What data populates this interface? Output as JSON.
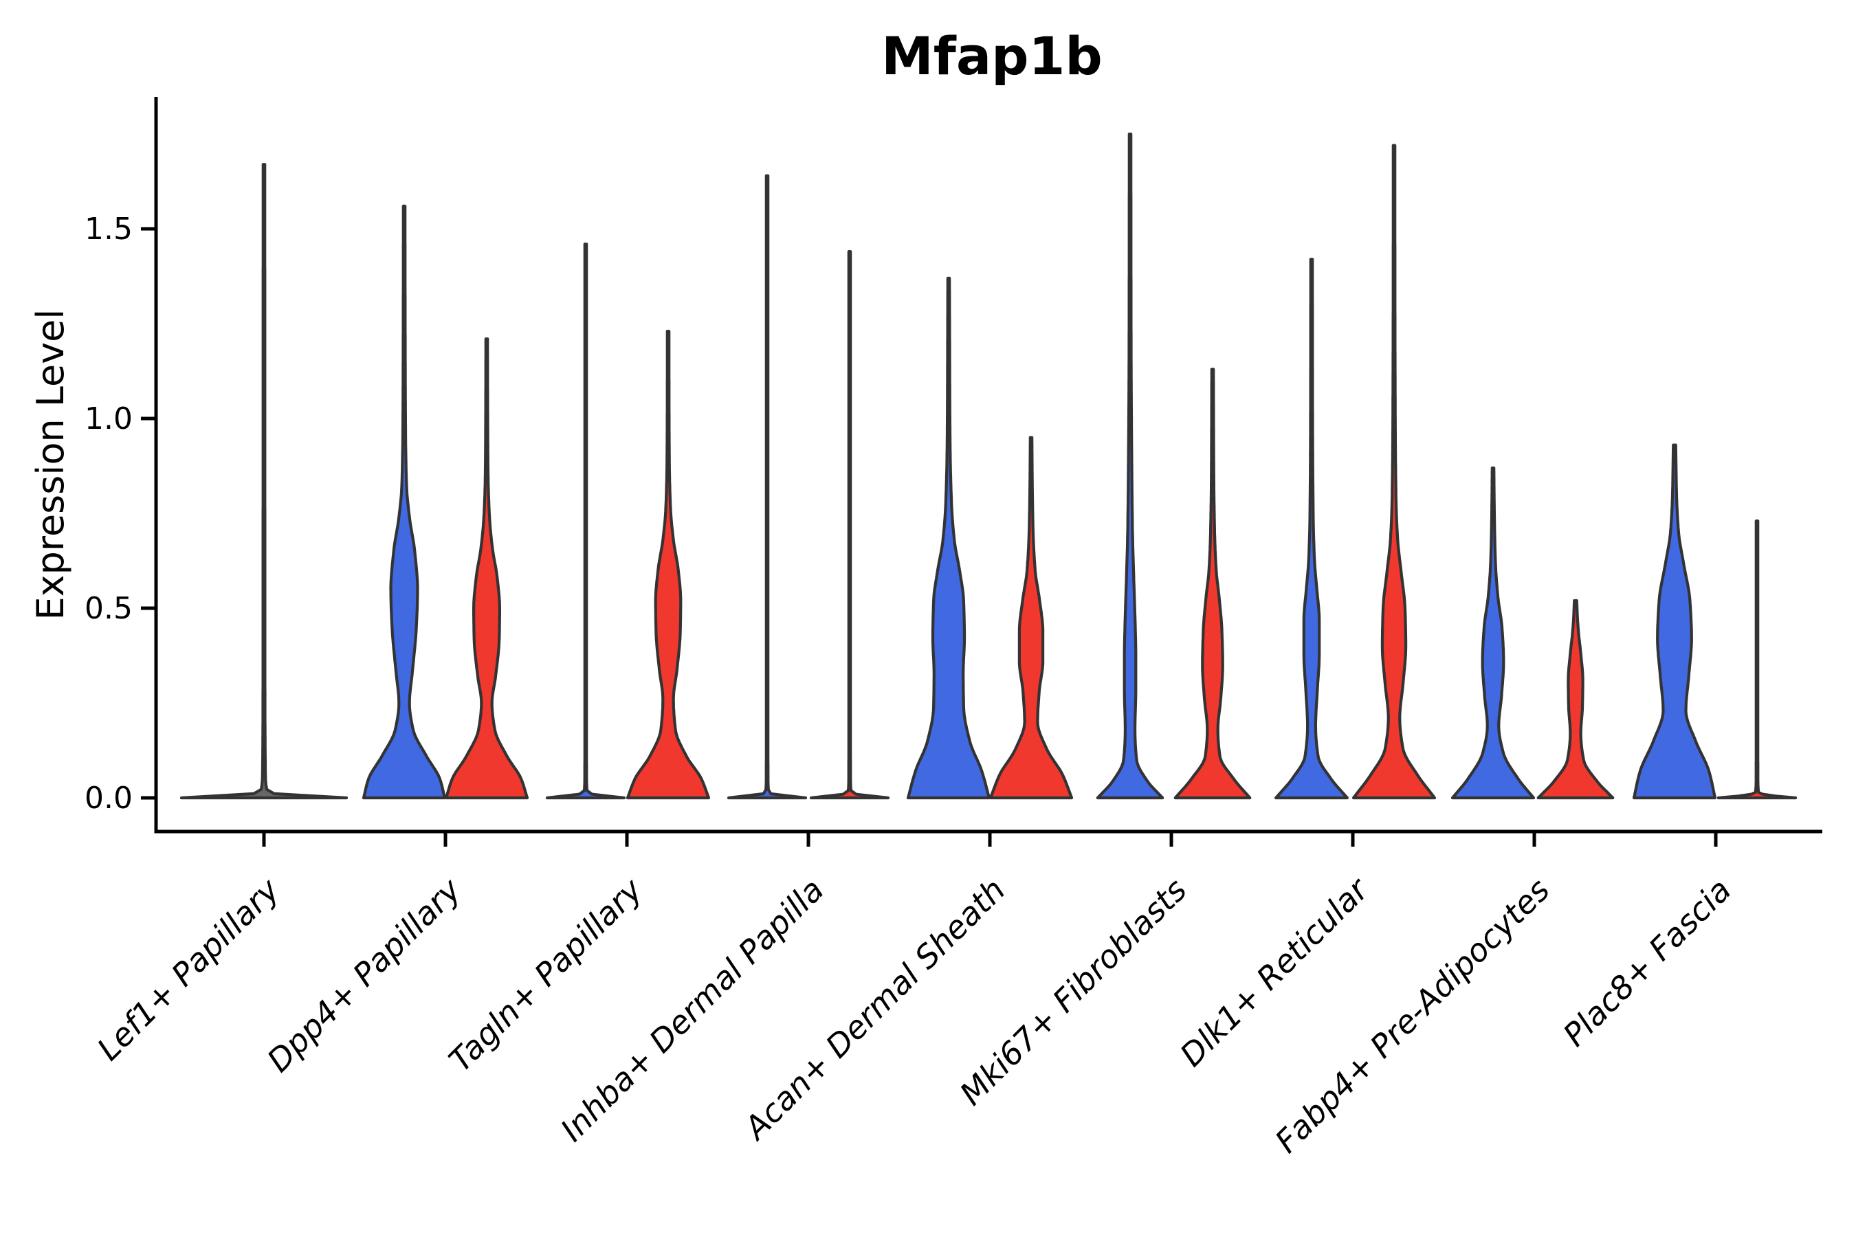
{
  "chart_data": {
    "type": "violin",
    "title": "Mfap1b",
    "ylabel": "Expression Level",
    "xlabel": "",
    "grid": false,
    "legend": "none",
    "ylim": [
      -0.09,
      1.85
    ],
    "yticks": [
      {
        "value": 0.0,
        "label": "0.0"
      },
      {
        "value": 0.5,
        "label": "0.5"
      },
      {
        "value": 1.0,
        "label": "1.0"
      },
      {
        "value": 1.5,
        "label": "1.5"
      }
    ],
    "colors": {
      "blue": "#4169E1",
      "red": "#F0382E",
      "single": "#666666",
      "outline": "#333333",
      "axis": "#000000"
    },
    "groups": [
      {
        "id": "blue",
        "color_key": "blue"
      },
      {
        "id": "red",
        "color_key": "red"
      }
    ],
    "categories": [
      {
        "label": "Lef1+ Papillary",
        "violins": [
          {
            "group": "single",
            "span": "full",
            "max": 1.67,
            "profile": [
              [
                0,
                1.0
              ],
              [
                0.005,
                0.55
              ],
              [
                0.014,
                0.045
              ],
              [
                0.06,
                0.018
              ],
              [
                0.3,
                0.012
              ],
              [
                1.0,
                0.011
              ],
              [
                1.67,
                0.01
              ]
            ]
          }
        ]
      },
      {
        "label": "Dpp4+ Papillary",
        "violins": [
          {
            "group": "blue",
            "span": "half",
            "max": 1.56,
            "profile": [
              [
                0,
                1.0
              ],
              [
                0.05,
                0.88
              ],
              [
                0.11,
                0.55
              ],
              [
                0.18,
                0.22
              ],
              [
                0.25,
                0.13
              ],
              [
                0.33,
                0.2
              ],
              [
                0.45,
                0.3
              ],
              [
                0.55,
                0.33
              ],
              [
                0.65,
                0.26
              ],
              [
                0.74,
                0.13
              ],
              [
                0.82,
                0.06
              ],
              [
                0.95,
                0.035
              ],
              [
                1.2,
                0.025
              ],
              [
                1.56,
                0.02
              ]
            ]
          },
          {
            "group": "red",
            "span": "half",
            "max": 1.21,
            "profile": [
              [
                0,
                1.0
              ],
              [
                0.05,
                0.85
              ],
              [
                0.11,
                0.5
              ],
              [
                0.18,
                0.2
              ],
              [
                0.25,
                0.13
              ],
              [
                0.32,
                0.22
              ],
              [
                0.42,
                0.31
              ],
              [
                0.5,
                0.32
              ],
              [
                0.58,
                0.26
              ],
              [
                0.66,
                0.14
              ],
              [
                0.74,
                0.07
              ],
              [
                0.85,
                0.035
              ],
              [
                1.0,
                0.025
              ],
              [
                1.21,
                0.02
              ]
            ]
          }
        ]
      },
      {
        "label": "Tagln+ Papillary",
        "violins": [
          {
            "group": "blue",
            "span": "half",
            "max": 1.46,
            "profile": [
              [
                0,
                0.95
              ],
              [
                0.005,
                0.5
              ],
              [
                0.013,
                0.04
              ],
              [
                0.05,
                0.022
              ],
              [
                0.3,
                0.02
              ],
              [
                1.46,
                0.02
              ]
            ]
          },
          {
            "group": "red",
            "span": "half",
            "max": 1.23,
            "profile": [
              [
                0,
                1.0
              ],
              [
                0.05,
                0.82
              ],
              [
                0.11,
                0.45
              ],
              [
                0.18,
                0.18
              ],
              [
                0.26,
                0.13
              ],
              [
                0.34,
                0.22
              ],
              [
                0.44,
                0.3
              ],
              [
                0.52,
                0.31
              ],
              [
                0.6,
                0.25
              ],
              [
                0.68,
                0.13
              ],
              [
                0.76,
                0.06
              ],
              [
                0.88,
                0.03
              ],
              [
                1.05,
                0.022
              ],
              [
                1.23,
                0.02
              ]
            ]
          }
        ]
      },
      {
        "label": "Inhba+ Dermal Papilla",
        "violins": [
          {
            "group": "blue",
            "span": "half",
            "max": 1.64,
            "profile": [
              [
                0,
                0.95
              ],
              [
                0.005,
                0.5
              ],
              [
                0.013,
                0.04
              ],
              [
                0.05,
                0.022
              ],
              [
                0.3,
                0.02
              ],
              [
                1.64,
                0.02
              ]
            ]
          },
          {
            "group": "red",
            "span": "half",
            "max": 1.44,
            "profile": [
              [
                0,
                0.95
              ],
              [
                0.005,
                0.5
              ],
              [
                0.013,
                0.04
              ],
              [
                0.05,
                0.022
              ],
              [
                0.3,
                0.02
              ],
              [
                1.44,
                0.02
              ]
            ]
          }
        ]
      },
      {
        "label": "Acan+ Dermal Sheath",
        "violins": [
          {
            "group": "blue",
            "span": "half",
            "max": 1.37,
            "profile": [
              [
                0,
                1.0
              ],
              [
                0.07,
                0.82
              ],
              [
                0.15,
                0.52
              ],
              [
                0.24,
                0.37
              ],
              [
                0.33,
                0.36
              ],
              [
                0.42,
                0.39
              ],
              [
                0.52,
                0.37
              ],
              [
                0.6,
                0.27
              ],
              [
                0.68,
                0.14
              ],
              [
                0.78,
                0.07
              ],
              [
                0.95,
                0.035
              ],
              [
                1.37,
                0.02
              ]
            ]
          },
          {
            "group": "red",
            "span": "half",
            "max": 0.95,
            "profile": [
              [
                0,
                1.0
              ],
              [
                0.06,
                0.78
              ],
              [
                0.13,
                0.38
              ],
              [
                0.2,
                0.16
              ],
              [
                0.28,
                0.2
              ],
              [
                0.36,
                0.29
              ],
              [
                0.44,
                0.29
              ],
              [
                0.52,
                0.21
              ],
              [
                0.6,
                0.1
              ],
              [
                0.7,
                0.05
              ],
              [
                0.82,
                0.03
              ],
              [
                0.95,
                0.02
              ]
            ]
          }
        ]
      },
      {
        "label": "Mki67+ Fibroblasts",
        "violins": [
          {
            "group": "blue",
            "span": "half",
            "max": 1.75,
            "profile": [
              [
                0,
                0.8
              ],
              [
                0.045,
                0.42
              ],
              [
                0.1,
                0.16
              ],
              [
                0.18,
                0.12
              ],
              [
                0.28,
                0.14
              ],
              [
                0.38,
                0.14
              ],
              [
                0.48,
                0.12
              ],
              [
                0.58,
                0.09
              ],
              [
                0.7,
                0.06
              ],
              [
                0.9,
                0.04
              ],
              [
                1.2,
                0.025
              ],
              [
                1.75,
                0.02
              ]
            ]
          },
          {
            "group": "red",
            "span": "half",
            "max": 1.13,
            "profile": [
              [
                0,
                0.92
              ],
              [
                0.05,
                0.52
              ],
              [
                0.11,
                0.18
              ],
              [
                0.18,
                0.13
              ],
              [
                0.26,
                0.2
              ],
              [
                0.35,
                0.25
              ],
              [
                0.44,
                0.23
              ],
              [
                0.52,
                0.17
              ],
              [
                0.6,
                0.09
              ],
              [
                0.7,
                0.05
              ],
              [
                0.85,
                0.03
              ],
              [
                1.13,
                0.02
              ]
            ]
          }
        ]
      },
      {
        "label": "Dlk1+ Reticular",
        "violins": [
          {
            "group": "blue",
            "span": "half",
            "max": 1.42,
            "profile": [
              [
                0,
                0.88
              ],
              [
                0.05,
                0.48
              ],
              [
                0.11,
                0.16
              ],
              [
                0.19,
                0.1
              ],
              [
                0.28,
                0.14
              ],
              [
                0.38,
                0.19
              ],
              [
                0.47,
                0.19
              ],
              [
                0.55,
                0.13
              ],
              [
                0.63,
                0.07
              ],
              [
                0.75,
                0.04
              ],
              [
                1.0,
                0.025
              ],
              [
                1.42,
                0.02
              ]
            ]
          },
          {
            "group": "red",
            "span": "half",
            "max": 1.72,
            "profile": [
              [
                0,
                1.0
              ],
              [
                0.06,
                0.58
              ],
              [
                0.13,
                0.22
              ],
              [
                0.21,
                0.14
              ],
              [
                0.3,
                0.22
              ],
              [
                0.4,
                0.29
              ],
              [
                0.5,
                0.27
              ],
              [
                0.6,
                0.17
              ],
              [
                0.68,
                0.09
              ],
              [
                0.78,
                0.05
              ],
              [
                1.0,
                0.03
              ],
              [
                1.35,
                0.022
              ],
              [
                1.72,
                0.02
              ]
            ]
          }
        ]
      },
      {
        "label": "Fabp4+ Pre-Adipocytes",
        "violins": [
          {
            "group": "blue",
            "span": "half",
            "max": 0.87,
            "profile": [
              [
                0,
                1.0
              ],
              [
                0.05,
                0.62
              ],
              [
                0.12,
                0.25
              ],
              [
                0.19,
                0.14
              ],
              [
                0.27,
                0.21
              ],
              [
                0.36,
                0.26
              ],
              [
                0.45,
                0.22
              ],
              [
                0.53,
                0.12
              ],
              [
                0.62,
                0.06
              ],
              [
                0.73,
                0.035
              ],
              [
                0.87,
                0.02
              ]
            ]
          },
          {
            "group": "red",
            "span": "half",
            "max": 0.52,
            "profile": [
              [
                0,
                0.92
              ],
              [
                0.045,
                0.52
              ],
              [
                0.1,
                0.2
              ],
              [
                0.17,
                0.13
              ],
              [
                0.24,
                0.17
              ],
              [
                0.31,
                0.18
              ],
              [
                0.38,
                0.13
              ],
              [
                0.44,
                0.07
              ],
              [
                0.48,
                0.045
              ],
              [
                0.52,
                0.03
              ]
            ]
          }
        ]
      },
      {
        "label": "Plac8+ Fascia",
        "violins": [
          {
            "group": "blue",
            "span": "half",
            "max": 0.93,
            "profile": [
              [
                0,
                1.0
              ],
              [
                0.07,
                0.85
              ],
              [
                0.15,
                0.52
              ],
              [
                0.23,
                0.28
              ],
              [
                0.32,
                0.35
              ],
              [
                0.42,
                0.42
              ],
              [
                0.52,
                0.38
              ],
              [
                0.62,
                0.22
              ],
              [
                0.7,
                0.1
              ],
              [
                0.8,
                0.05
              ],
              [
                0.93,
                0.03
              ]
            ]
          },
          {
            "group": "red",
            "span": "half",
            "max": 0.73,
            "profile": [
              [
                0,
                0.95
              ],
              [
                0.005,
                0.45
              ],
              [
                0.013,
                0.04
              ],
              [
                0.05,
                0.022
              ],
              [
                0.3,
                0.02
              ],
              [
                0.73,
                0.02
              ]
            ]
          }
        ]
      }
    ]
  }
}
